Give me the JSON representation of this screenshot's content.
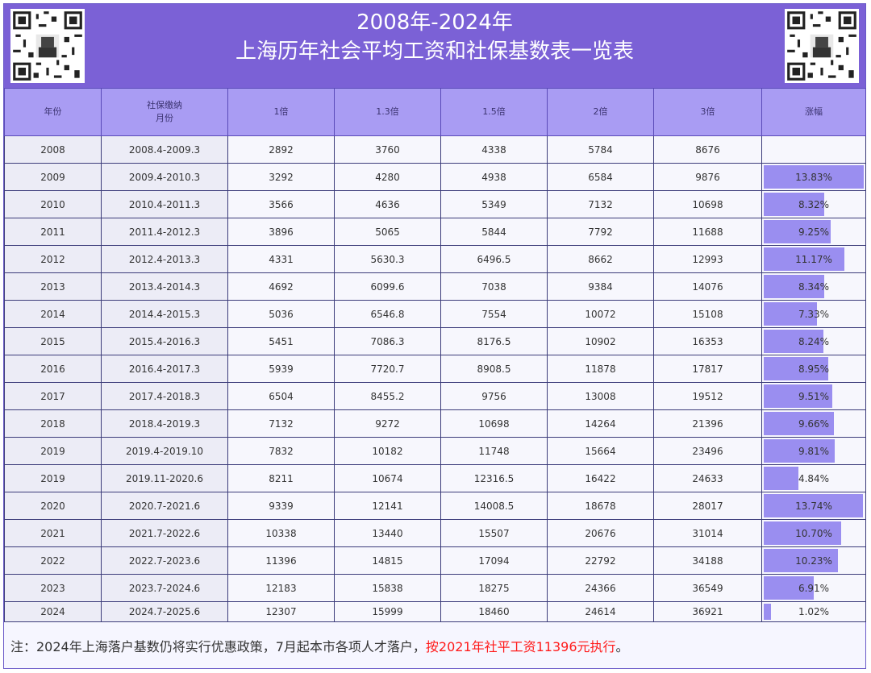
{
  "header": {
    "title_line1": "2008年-2024年",
    "title_line2": "上海历年社会平均工资和社保基数表一览表"
  },
  "columns": [
    "年份",
    "社保缴纳",
    "月份",
    "1倍",
    "1.3倍",
    "1.5倍",
    "2倍",
    "3倍",
    "涨幅"
  ],
  "rows": [
    {
      "year": "2008",
      "period": "2008.4-2009.3",
      "x1": "2892",
      "x13": "3760",
      "x15": "4338",
      "x2": "5784",
      "x3": "8676",
      "growth": "",
      "growth_value": 0
    },
    {
      "year": "2009",
      "period": "2009.4-2010.3",
      "x1": "3292",
      "x13": "4280",
      "x15": "4938",
      "x2": "6584",
      "x3": "9876",
      "growth": "13.83%",
      "growth_value": 13.83
    },
    {
      "year": "2010",
      "period": "2010.4-2011.3",
      "x1": "3566",
      "x13": "4636",
      "x15": "5349",
      "x2": "7132",
      "x3": "10698",
      "growth": "8.32%",
      "growth_value": 8.32
    },
    {
      "year": "2011",
      "period": "2011.4-2012.3",
      "x1": "3896",
      "x13": "5065",
      "x15": "5844",
      "x2": "7792",
      "x3": "11688",
      "growth": "9.25%",
      "growth_value": 9.25
    },
    {
      "year": "2012",
      "period": "2012.4-2013.3",
      "x1": "4331",
      "x13": "5630.3",
      "x15": "6496.5",
      "x2": "8662",
      "x3": "12993",
      "growth": "11.17%",
      "growth_value": 11.17
    },
    {
      "year": "2013",
      "period": "2013.4-2014.3",
      "x1": "4692",
      "x13": "6099.6",
      "x15": "7038",
      "x2": "9384",
      "x3": "14076",
      "growth": "8.34%",
      "growth_value": 8.34
    },
    {
      "year": "2014",
      "period": "2014.4-2015.3",
      "x1": "5036",
      "x13": "6546.8",
      "x15": "7554",
      "x2": "10072",
      "x3": "15108",
      "growth": "7.33%",
      "growth_value": 7.33
    },
    {
      "year": "2015",
      "period": "2015.4-2016.3",
      "x1": "5451",
      "x13": "7086.3",
      "x15": "8176.5",
      "x2": "10902",
      "x3": "16353",
      "growth": "8.24%",
      "growth_value": 8.24
    },
    {
      "year": "2016",
      "period": "2016.4-2017.3",
      "x1": "5939",
      "x13": "7720.7",
      "x15": "8908.5",
      "x2": "11878",
      "x3": "17817",
      "growth": "8.95%",
      "growth_value": 8.95
    },
    {
      "year": "2017",
      "period": "2017.4-2018.3",
      "x1": "6504",
      "x13": "8455.2",
      "x15": "9756",
      "x2": "13008",
      "x3": "19512",
      "growth": "9.51%",
      "growth_value": 9.51
    },
    {
      "year": "2018",
      "period": "2018.4-2019.3",
      "x1": "7132",
      "x13": "9272",
      "x15": "10698",
      "x2": "14264",
      "x3": "21396",
      "growth": "9.66%",
      "growth_value": 9.66
    },
    {
      "year": "2019",
      "period": "2019.4-2019.10",
      "x1": "7832",
      "x13": "10182",
      "x15": "11748",
      "x2": "15664",
      "x3": "23496",
      "growth": "9.81%",
      "growth_value": 9.81
    },
    {
      "year": "2019",
      "period": "2019.11-2020.6",
      "x1": "8211",
      "x13": "10674",
      "x15": "12316.5",
      "x2": "16422",
      "x3": "24633",
      "growth": "4.84%",
      "growth_value": 4.84
    },
    {
      "year": "2020",
      "period": "2020.7-2021.6",
      "x1": "9339",
      "x13": "12141",
      "x15": "14008.5",
      "x2": "18678",
      "x3": "28017",
      "growth": "13.74%",
      "growth_value": 13.74
    },
    {
      "year": "2021",
      "period": "2021.7-2022.6",
      "x1": "10338",
      "x13": "13440",
      "x15": "15507",
      "x2": "20676",
      "x3": "31014",
      "growth": "10.70%",
      "growth_value": 10.7
    },
    {
      "year": "2022",
      "period": "2022.7-2023.6",
      "x1": "11396",
      "x13": "14815",
      "x15": "17094",
      "x2": "22792",
      "x3": "34188",
      "growth": "10.23%",
      "growth_value": 10.23
    },
    {
      "year": "2023",
      "period": "2023.7-2024.6",
      "x1": "12183",
      "x13": "15838",
      "x15": "18275",
      "x2": "24366",
      "x3": "36549",
      "growth": "6.91%",
      "growth_value": 6.91
    },
    {
      "year": "2024",
      "period": "2024.7-2025.6",
      "x1": "12307",
      "x13": "15999",
      "x15": "18460",
      "x2": "24614",
      "x3": "36921",
      "growth": "1.02%",
      "growth_value": 1.02
    }
  ],
  "note": {
    "prefix": "注：2024年上海落户基数仍将实行优惠政策，7月起本市各项人才落户，",
    "highlight": "按2021年社平工资11396元执行",
    "suffix": "。"
  },
  "colors": {
    "header_bg": "#7b61d6",
    "column_header_bg": "#a99cf3",
    "growth_bar": "#9a8ef0",
    "highlight_text": "#ff1a1a"
  },
  "icons": {
    "qr_left": "qr-code-icon",
    "qr_right": "qr-code-icon"
  }
}
